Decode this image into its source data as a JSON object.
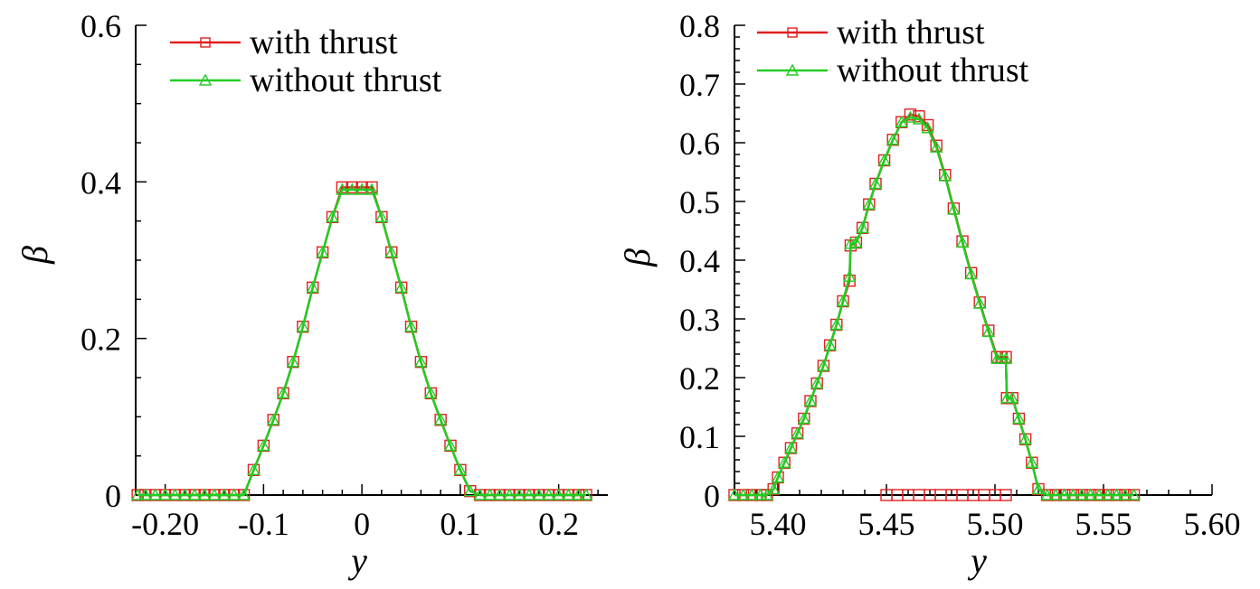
{
  "colors": {
    "with_thrust": "#e02020",
    "without_thrust": "#22cc22",
    "axis": "#000000"
  },
  "chart_data": [
    {
      "type": "line",
      "xlabel": "y",
      "ylabel": "β",
      "xlim": [
        -0.23,
        0.25
      ],
      "ylim": [
        0,
        0.6
      ],
      "x_ticks": [
        -0.2,
        -0.1,
        0,
        0.1,
        0.2
      ],
      "x_tick_labels": [
        "-0.20",
        "-0.1",
        "0",
        "0.1",
        "0.2"
      ],
      "y_ticks": [
        0,
        0.2,
        0.4,
        0.6
      ],
      "y_tick_labels": [
        "0",
        "0.2",
        "0.4",
        "0.6"
      ],
      "legend": "top-left",
      "grid": false,
      "series": [
        {
          "name": "with thrust",
          "marker": "square",
          "x": [
            -0.228,
            -0.22,
            -0.21,
            -0.2,
            -0.19,
            -0.18,
            -0.17,
            -0.16,
            -0.15,
            -0.14,
            -0.13,
            -0.12,
            -0.11,
            -0.1,
            -0.09,
            -0.08,
            -0.07,
            -0.06,
            -0.05,
            -0.04,
            -0.03,
            -0.02,
            -0.01,
            0,
            0.01,
            0.02,
            0.03,
            0.04,
            0.05,
            0.06,
            0.07,
            0.08,
            0.09,
            0.1,
            0.11,
            0.12,
            0.13,
            0.14,
            0.15,
            0.16,
            0.17,
            0.18,
            0.19,
            0.2,
            0.21,
            0.22,
            0.228
          ],
          "y": [
            0,
            0,
            0,
            0,
            0,
            0,
            0,
            0,
            0,
            0,
            0,
            0,
            0.032,
            0.063,
            0.096,
            0.13,
            0.17,
            0.215,
            0.265,
            0.31,
            0.355,
            0.393,
            0.393,
            0.393,
            0.393,
            0.355,
            0.31,
            0.265,
            0.215,
            0.17,
            0.13,
            0.096,
            0.063,
            0.032,
            0.005,
            0,
            0,
            0,
            0,
            0,
            0,
            0,
            0,
            0,
            0,
            0,
            0
          ]
        },
        {
          "name": "without thrust",
          "marker": "triangle",
          "x": [
            -0.228,
            -0.22,
            -0.21,
            -0.2,
            -0.19,
            -0.18,
            -0.17,
            -0.16,
            -0.15,
            -0.14,
            -0.13,
            -0.12,
            -0.11,
            -0.1,
            -0.09,
            -0.08,
            -0.07,
            -0.06,
            -0.05,
            -0.04,
            -0.03,
            -0.02,
            -0.01,
            0,
            0.01,
            0.02,
            0.03,
            0.04,
            0.05,
            0.06,
            0.07,
            0.08,
            0.09,
            0.1,
            0.11,
            0.12,
            0.13,
            0.14,
            0.15,
            0.16,
            0.17,
            0.18,
            0.19,
            0.2,
            0.21,
            0.22,
            0.228
          ],
          "y": [
            0,
            0,
            0,
            0,
            0,
            0,
            0,
            0,
            0,
            0,
            0,
            0,
            0.032,
            0.063,
            0.096,
            0.13,
            0.17,
            0.215,
            0.265,
            0.31,
            0.355,
            0.39,
            0.39,
            0.39,
            0.39,
            0.355,
            0.31,
            0.265,
            0.215,
            0.17,
            0.13,
            0.096,
            0.063,
            0.032,
            0.005,
            0,
            0,
            0,
            0,
            0,
            0,
            0,
            0,
            0,
            0,
            0,
            0
          ]
        }
      ]
    },
    {
      "type": "line",
      "xlabel": "y",
      "ylabel": "β",
      "xlim": [
        5.38,
        5.6
      ],
      "ylim": [
        0,
        0.8
      ],
      "x_ticks": [
        5.4,
        5.45,
        5.5,
        5.55,
        5.6
      ],
      "x_tick_labels": [
        "5.40",
        "5.45",
        "5.50",
        "5.55",
        "5.60"
      ],
      "y_ticks": [
        0,
        0.1,
        0.2,
        0.3,
        0.4,
        0.5,
        0.6,
        0.7,
        0.8
      ],
      "y_tick_labels": [
        "0",
        "0.1",
        "0.2",
        "0.3",
        "0.4",
        "0.5",
        "0.6",
        "0.7",
        "0.8"
      ],
      "legend": "top-left",
      "grid": false,
      "series": [
        {
          "name": "with thrust",
          "marker": "square",
          "x": [
            5.38,
            5.384,
            5.388,
            5.392,
            5.395,
            5.398,
            5.4,
            5.403,
            5.406,
            5.409,
            5.412,
            5.415,
            5.418,
            5.421,
            5.424,
            5.427,
            5.43,
            5.433,
            5.4335,
            5.436,
            5.439,
            5.442,
            5.445,
            5.449,
            5.453,
            5.457,
            5.461,
            5.465,
            5.469,
            5.473,
            5.477,
            5.481,
            5.485,
            5.489,
            5.493,
            5.497,
            5.501,
            5.503,
            5.505,
            5.5055,
            5.508,
            5.511,
            5.514,
            5.517,
            5.52,
            5.524,
            5.528,
            5.532,
            5.536,
            5.54,
            5.544,
            5.548,
            5.552,
            5.556,
            5.56,
            5.564
          ],
          "y": [
            0,
            0,
            0,
            0,
            0,
            0.01,
            0.03,
            0.055,
            0.08,
            0.105,
            0.13,
            0.16,
            0.19,
            0.22,
            0.255,
            0.29,
            0.33,
            0.365,
            0.425,
            0.43,
            0.455,
            0.495,
            0.53,
            0.57,
            0.605,
            0.635,
            0.648,
            0.645,
            0.63,
            0.595,
            0.545,
            0.488,
            0.432,
            0.378,
            0.328,
            0.28,
            0.235,
            0.235,
            0.235,
            0.165,
            0.165,
            0.13,
            0.095,
            0.055,
            0.01,
            0,
            0,
            0,
            0,
            0,
            0,
            0,
            0,
            0,
            0,
            0
          ]
        },
        {
          "name": "without thrust",
          "marker": "triangle",
          "x": [
            5.38,
            5.384,
            5.388,
            5.392,
            5.395,
            5.398,
            5.4,
            5.403,
            5.406,
            5.409,
            5.412,
            5.415,
            5.418,
            5.421,
            5.424,
            5.427,
            5.43,
            5.433,
            5.4335,
            5.436,
            5.439,
            5.442,
            5.445,
            5.449,
            5.453,
            5.457,
            5.461,
            5.465,
            5.469,
            5.473,
            5.477,
            5.481,
            5.485,
            5.489,
            5.493,
            5.497,
            5.501,
            5.503,
            5.505,
            5.5055,
            5.508,
            5.511,
            5.514,
            5.517,
            5.52,
            5.524,
            5.528,
            5.532,
            5.536,
            5.54,
            5.544,
            5.548,
            5.552,
            5.556,
            5.56,
            5.564
          ],
          "y": [
            0,
            0,
            0,
            0,
            0,
            0.01,
            0.03,
            0.055,
            0.08,
            0.105,
            0.13,
            0.16,
            0.19,
            0.22,
            0.255,
            0.29,
            0.33,
            0.372,
            0.428,
            0.43,
            0.455,
            0.495,
            0.53,
            0.57,
            0.605,
            0.635,
            0.643,
            0.64,
            0.625,
            0.592,
            0.543,
            0.486,
            0.43,
            0.376,
            0.326,
            0.278,
            0.232,
            0.232,
            0.232,
            0.165,
            0.165,
            0.13,
            0.095,
            0.055,
            0.01,
            0,
            0,
            0,
            0,
            0,
            0,
            0,
            0,
            0,
            0,
            0
          ]
        },
        {
          "name": "",
          "marker": "square",
          "x": [
            5.45,
            5.455,
            5.46,
            5.465,
            5.47,
            5.475,
            5.48,
            5.485,
            5.49,
            5.495,
            5.5,
            5.505
          ],
          "y": [
            0,
            0,
            0,
            0,
            0,
            0,
            0,
            0,
            0,
            0,
            0,
            0
          ]
        }
      ]
    }
  ]
}
